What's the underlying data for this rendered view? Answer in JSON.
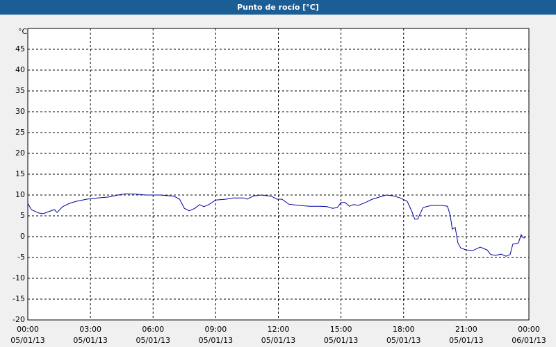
{
  "chart_data": {
    "type": "line",
    "title": "Punto de rocío [°C]",
    "y_unit": "°C",
    "xlim": [
      0,
      24
    ],
    "xticks": [
      {
        "value": 0,
        "label": "00:00",
        "date": "05/01/13"
      },
      {
        "value": 3,
        "label": "03:00",
        "date": "05/01/13"
      },
      {
        "value": 6,
        "label": "06:00",
        "date": "05/01/13"
      },
      {
        "value": 9,
        "label": "09:00",
        "date": "05/01/13"
      },
      {
        "value": 12,
        "label": "12:00",
        "date": "05/01/13"
      },
      {
        "value": 15,
        "label": "15:00",
        "date": "05/01/13"
      },
      {
        "value": 18,
        "label": "18:00",
        "date": "05/01/13"
      },
      {
        "value": 21,
        "label": "21:00",
        "date": "05/01/13"
      },
      {
        "value": 24,
        "label": "00:00",
        "date": "06/01/13"
      }
    ],
    "ylim": [
      -20,
      50
    ],
    "yticks": [
      -20,
      -15,
      -10,
      -5,
      0,
      5,
      10,
      15,
      20,
      25,
      30,
      35,
      40,
      45
    ],
    "grid": true,
    "series": [
      {
        "color": "#0000a0",
        "x": [
          0,
          0.17,
          0.5,
          0.73,
          1,
          1.27,
          1.4,
          1.67,
          2,
          2.33,
          2.83,
          3.33,
          3.83,
          4.33,
          4.67,
          5.17,
          5.67,
          6.33,
          7,
          7.27,
          7.5,
          7.73,
          8,
          8.23,
          8.43,
          8.67,
          9,
          9.5,
          9.83,
          10.33,
          10.5,
          10.83,
          11.17,
          11.67,
          11.93,
          12.17,
          12.5,
          13,
          13.5,
          14,
          14.33,
          14.6,
          14.83,
          15,
          15.2,
          15.4,
          15.6,
          15.83,
          16.17,
          16.5,
          16.83,
          17.17,
          17.5,
          17.83,
          18.17,
          18.4,
          18.53,
          18.67,
          18.93,
          19.33,
          19.83,
          20.1,
          20.23,
          20.33,
          20.47,
          20.6,
          20.73,
          21,
          21.33,
          21.67,
          22,
          22.17,
          22.4,
          22.67,
          22.9,
          23.1,
          23.23,
          23.5,
          23.63,
          23.73,
          23.83
        ],
        "values": [
          8,
          6.5,
          5.7,
          5.5,
          6,
          6.5,
          5.8,
          7.2,
          8,
          8.5,
          9,
          9.3,
          9.5,
          10,
          10.3,
          10.2,
          10,
          10,
          9.7,
          9,
          6.8,
          6.2,
          6.8,
          7.7,
          7.2,
          7.7,
          8.8,
          9,
          9.3,
          9.3,
          9,
          9.8,
          10,
          9.7,
          9,
          9,
          7.8,
          7.5,
          7.3,
          7.3,
          7.2,
          6.8,
          7,
          8.2,
          8.2,
          7.3,
          7.7,
          7.5,
          8.2,
          9,
          9.5,
          10,
          9.8,
          9.3,
          8.5,
          6,
          4.2,
          4.2,
          7,
          7.5,
          7.5,
          7.3,
          5.2,
          1.8,
          2.2,
          -1.5,
          -2.7,
          -3.2,
          -3.3,
          -2.5,
          -3.2,
          -4.3,
          -4.5,
          -4.2,
          -4.7,
          -4.3,
          -1.8,
          -1.5,
          0.5,
          -0.3,
          -0.3
        ]
      }
    ]
  }
}
